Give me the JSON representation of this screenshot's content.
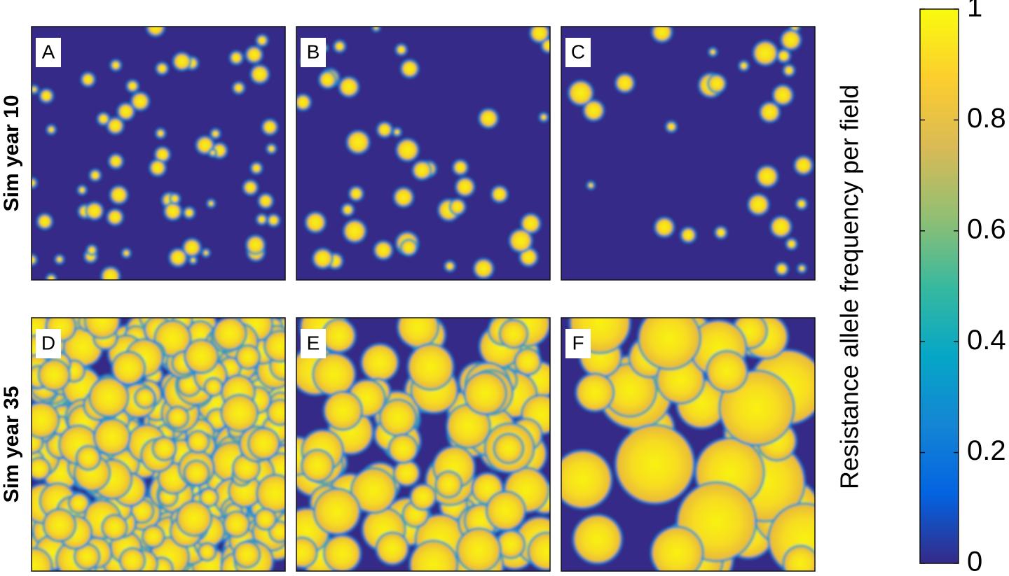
{
  "chart_data": {
    "type": "heatmap",
    "row_labels": [
      "Sim year 10",
      "Sim year 35"
    ],
    "panels": [
      {
        "label": "A"
      },
      {
        "label": "B"
      },
      {
        "label": "C"
      },
      {
        "label": "D"
      },
      {
        "label": "E"
      },
      {
        "label": "F"
      }
    ],
    "colorbar": {
      "label": "Resistance allele frequency per field",
      "clim": [
        0,
        1
      ],
      "ticks": [
        0,
        0.2,
        0.4,
        0.6,
        0.8,
        1
      ],
      "colormap": [
        "#352a87",
        "#0363e1",
        "#1485d4",
        "#06a7c6",
        "#38b99e",
        "#92bf73",
        "#d9ba56",
        "#fcce2e",
        "#f9fb0e"
      ]
    }
  }
}
